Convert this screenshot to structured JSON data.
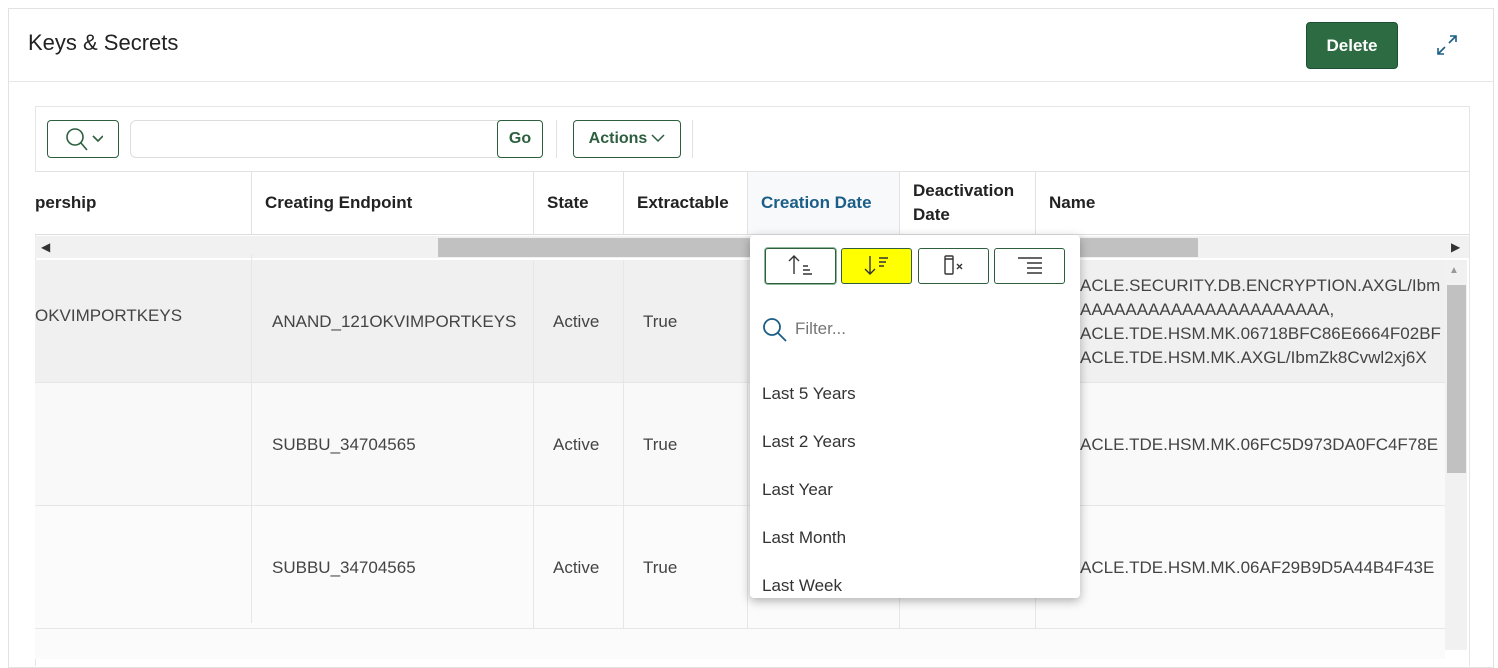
{
  "header": {
    "title": "Keys & Secrets",
    "delete_label": "Delete"
  },
  "toolbar": {
    "go_label": "Go",
    "actions_label": "Actions",
    "search_value": ""
  },
  "columns": [
    "pership",
    "Creating Endpoint",
    "State",
    "Extractable",
    "Creation Date",
    "Deactivation Date",
    "Name"
  ],
  "rows": [
    {
      "ownership": "OKVIMPORTKEYS",
      "endpoint": "ANAND_121OKVIMPORTKEYS",
      "state": "Active",
      "extractable": "True",
      "name": [
        "ACLE.SECURITY.DB.ENCRYPTION.AXGL/Ibm",
        "AAAAAAAAAAAAAAAAAAAAAA,",
        "ACLE.TDE.HSM.MK.06718BFC86E6664F02BF",
        "ACLE.TDE.HSM.MK.AXGL/IbmZk8Cvwl2xj6X"
      ]
    },
    {
      "ownership": "",
      "endpoint": "SUBBU_34704565",
      "state": "Active",
      "extractable": "True",
      "name": [
        "ACLE.TDE.HSM.MK.06FC5D973DA0FC4F78E"
      ]
    },
    {
      "ownership": "",
      "endpoint": "SUBBU_34704565",
      "state": "Active",
      "extractable": "True",
      "name": [
        "ACLE.TDE.HSM.MK.06AF29B9D5A44B4F43E"
      ]
    }
  ],
  "column_menu": {
    "buttons": [
      {
        "icon": "sort-ascending-icon"
      },
      {
        "icon": "sort-descending-icon",
        "highlighted": true,
        "highlight_color": "#ffff00"
      },
      {
        "icon": "hide-column-icon"
      },
      {
        "icon": "control-break-icon"
      }
    ],
    "filter_placeholder": "Filter...",
    "options": [
      "Last 5 Years",
      "Last 2 Years",
      "Last Year",
      "Last Month",
      "Last Week"
    ]
  },
  "colors": {
    "accent": "#2d6b43",
    "active_header": "#1b5e87"
  }
}
